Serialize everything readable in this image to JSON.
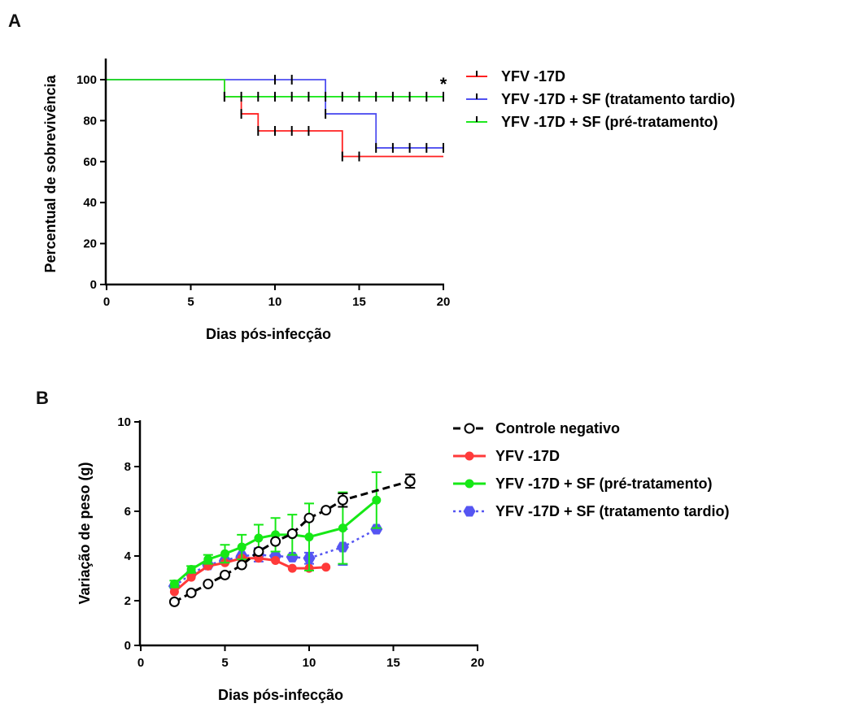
{
  "panel_a": {
    "letter": "A"
  },
  "panel_b": {
    "letter": "B"
  },
  "chart_data": [
    {
      "type": "line",
      "subtype": "kaplan-meier",
      "xlabel": "Dias pós-infecção",
      "ylabel": "Percentual de sobrevivência",
      "xlim": [
        0,
        20
      ],
      "ylim": [
        0,
        110
      ],
      "xticks": [
        "0",
        "5",
        "10",
        "15",
        "20"
      ],
      "yticks": [
        "0",
        "20",
        "40",
        "60",
        "80",
        "100"
      ],
      "xtick_values": [
        0,
        5,
        10,
        15,
        20
      ],
      "ytick_values": [
        0,
        20,
        40,
        60,
        80,
        100
      ],
      "grid": false,
      "legend_position": "right",
      "annotation": "*",
      "series": [
        {
          "name": "YFV -17D",
          "color": "#ff2020",
          "steps": [
            [
              0,
              100
            ],
            [
              7,
              91.7
            ],
            [
              8,
              83.3
            ],
            [
              9,
              75
            ],
            [
              14,
              62.5
            ],
            [
              20,
              62.5
            ]
          ],
          "censored": [
            [
              7,
              91.7
            ],
            [
              8,
              83.3
            ],
            [
              9,
              75
            ],
            [
              10,
              75
            ],
            [
              11,
              75
            ],
            [
              12,
              75
            ],
            [
              14,
              62.5
            ],
            [
              15,
              62.5
            ]
          ]
        },
        {
          "name": "YFV -17D + SF (tratamento tardio)",
          "color": "#4f4ff0",
          "steps": [
            [
              0,
              100
            ],
            [
              13,
              83.3
            ],
            [
              16,
              66.7
            ],
            [
              20,
              66.7
            ]
          ],
          "censored": [
            [
              10,
              100
            ],
            [
              11,
              100
            ],
            [
              13,
              83.3
            ],
            [
              16,
              66.7
            ],
            [
              17,
              66.7
            ],
            [
              18,
              66.7
            ],
            [
              19,
              66.7
            ],
            [
              20,
              66.7
            ]
          ]
        },
        {
          "name": "YFV -17D + SF (pré-tratamento)",
          "color": "#1ee81e",
          "steps": [
            [
              0,
              100
            ],
            [
              7,
              91.7
            ],
            [
              20,
              91.7
            ]
          ],
          "censored": [
            [
              7,
              91.7
            ],
            [
              8,
              91.7
            ],
            [
              9,
              91.7
            ],
            [
              10,
              91.7
            ],
            [
              11,
              91.7
            ],
            [
              12,
              91.7
            ],
            [
              13,
              91.7
            ],
            [
              14,
              91.7
            ],
            [
              15,
              91.7
            ],
            [
              16,
              91.7
            ],
            [
              17,
              91.7
            ],
            [
              18,
              91.7
            ],
            [
              19,
              91.7
            ],
            [
              20,
              91.7
            ]
          ]
        }
      ]
    },
    {
      "type": "line",
      "xlabel": "Dias pós-infecção",
      "ylabel": "Variação de peso (g)",
      "xlim": [
        0,
        20
      ],
      "ylim": [
        0,
        10
      ],
      "xticks": [
        "0",
        "5",
        "10",
        "15",
        "20"
      ],
      "yticks": [
        "0",
        "2",
        "4",
        "6",
        "8",
        "10"
      ],
      "xtick_values": [
        0,
        5,
        10,
        15,
        20
      ],
      "ytick_values": [
        0,
        2,
        4,
        6,
        8,
        10
      ],
      "grid": false,
      "legend_position": "right",
      "series": [
        {
          "name": "Controle negativo",
          "color": "#000000",
          "line": "dashed",
          "marker": "open-circle",
          "x": [
            2,
            3,
            4,
            5,
            6,
            7,
            8,
            9,
            10,
            11,
            12,
            16
          ],
          "y": [
            1.95,
            2.35,
            2.75,
            3.15,
            3.6,
            4.2,
            4.65,
            5.0,
            5.7,
            6.05,
            6.5,
            7.35
          ],
          "err": [
            0,
            0,
            0,
            0,
            0,
            0,
            0,
            0,
            0,
            0,
            0.3,
            0.3
          ]
        },
        {
          "name": "YFV -17D",
          "color": "#ff3a3a",
          "line": "solid",
          "marker": "filled-circle",
          "x": [
            2,
            3,
            4,
            5,
            6,
            7,
            8,
            9,
            10,
            11
          ],
          "y": [
            2.4,
            3.05,
            3.55,
            3.7,
            3.9,
            3.9,
            3.8,
            3.45,
            3.45,
            3.5
          ],
          "err": [
            0,
            0,
            0,
            0,
            0,
            0,
            0,
            0,
            0,
            0
          ]
        },
        {
          "name": "YFV -17D + SF (pré-tratamento)",
          "color": "#16e816",
          "line": "solid",
          "marker": "filled-circle",
          "x": [
            2,
            3,
            4,
            5,
            6,
            7,
            8,
            9,
            10,
            12,
            14
          ],
          "y": [
            2.75,
            3.4,
            3.85,
            4.1,
            4.4,
            4.8,
            4.95,
            4.95,
            4.85,
            5.25,
            6.5
          ],
          "err": [
            0.15,
            0.15,
            0.2,
            0.4,
            0.55,
            0.6,
            0.75,
            0.9,
            1.5,
            1.6,
            1.25
          ]
        },
        {
          "name": "YFV -17D + SF (tratamento tardio)",
          "color": "#5555f2",
          "line": "dotted",
          "marker": "filled-hexagon",
          "x": [
            2,
            3,
            4,
            5,
            6,
            7,
            8,
            9,
            10,
            12,
            14
          ],
          "y": [
            2.65,
            3.2,
            3.6,
            3.8,
            4.0,
            4.05,
            4.0,
            3.95,
            3.9,
            4.4,
            5.2
          ],
          "err": [
            0,
            0,
            0,
            0,
            0,
            0.3,
            0,
            0,
            0.25,
            0.8,
            0
          ]
        }
      ]
    }
  ]
}
